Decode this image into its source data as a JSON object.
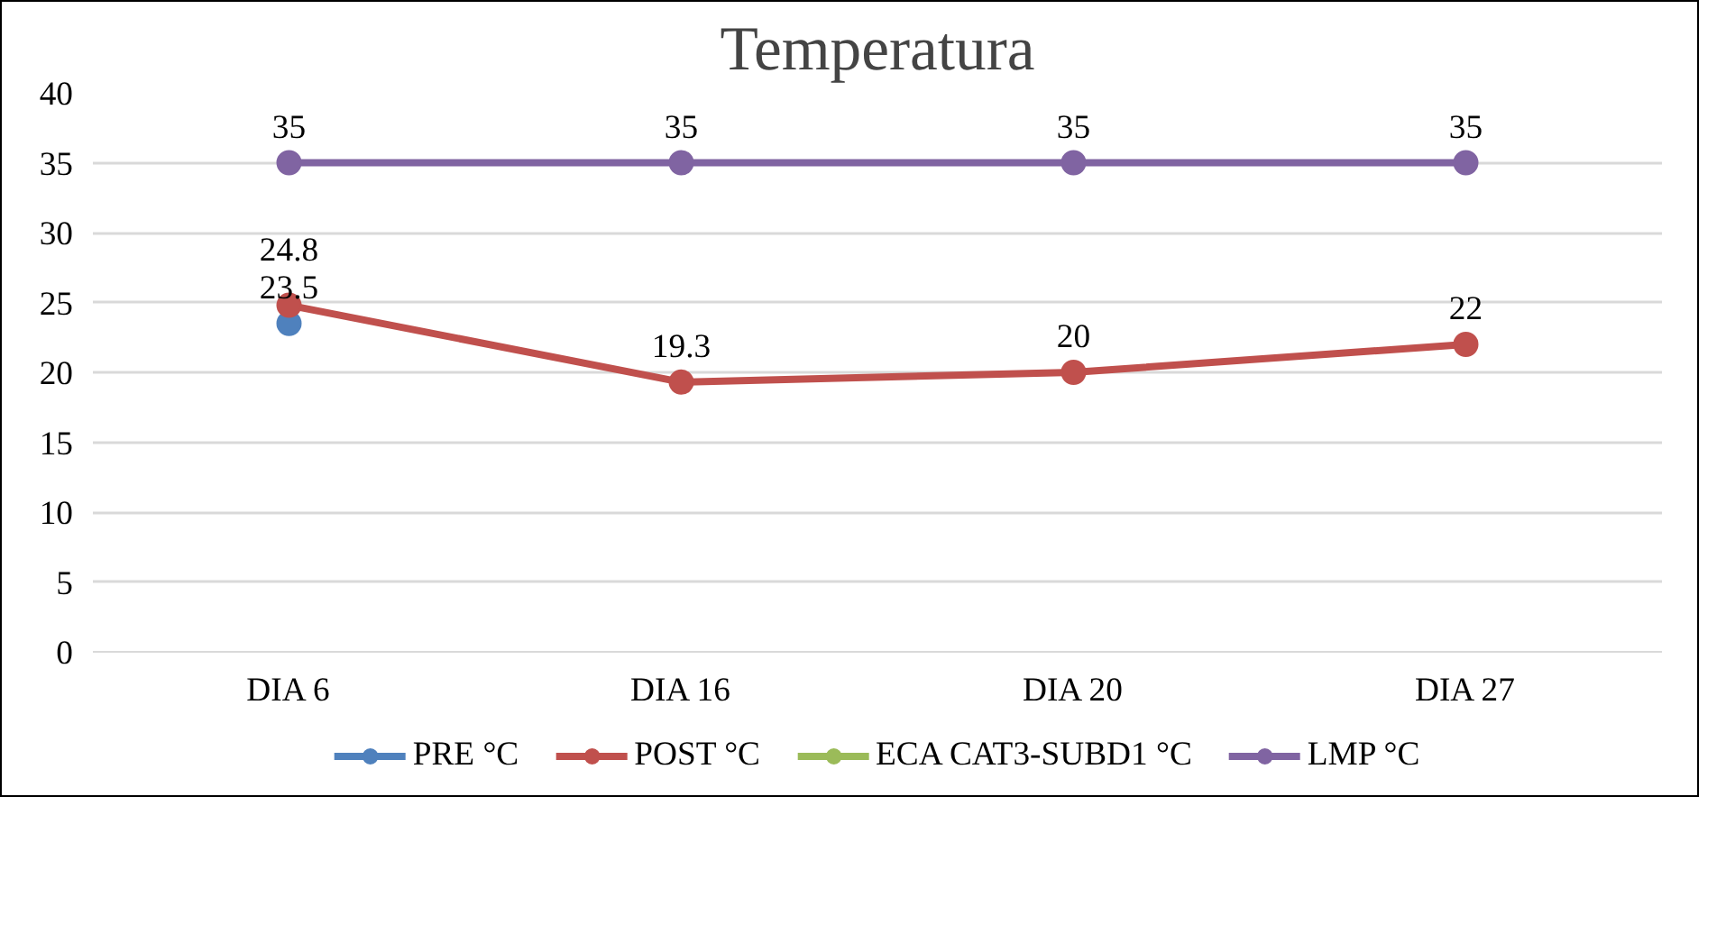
{
  "chart_data": {
    "type": "line",
    "title": "Temperatura",
    "categories": [
      "DIA 6",
      "DIA 16",
      "DIA 20",
      "DIA 27"
    ],
    "series": [
      {
        "name": "PRE °C",
        "color": "#4f81bd",
        "values": [
          23.5,
          null,
          null,
          null
        ]
      },
      {
        "name": "POST °C",
        "color": "#c0504d",
        "values": [
          24.8,
          19.3,
          20,
          22
        ]
      },
      {
        "name": "ECA CAT3-SUBD1 °C",
        "color": "#9bbb59",
        "values": [
          null,
          null,
          null,
          null
        ]
      },
      {
        "name": "LMP °C",
        "color": "#8064a2",
        "values": [
          35,
          35,
          35,
          35
        ]
      }
    ],
    "ylim": [
      0,
      40
    ],
    "yticks": [
      0,
      5,
      10,
      15,
      20,
      25,
      30,
      35,
      40
    ],
    "grid": "y",
    "legend": "bottom",
    "marker": "circle",
    "line_style": "solid",
    "data_labels": true
  }
}
